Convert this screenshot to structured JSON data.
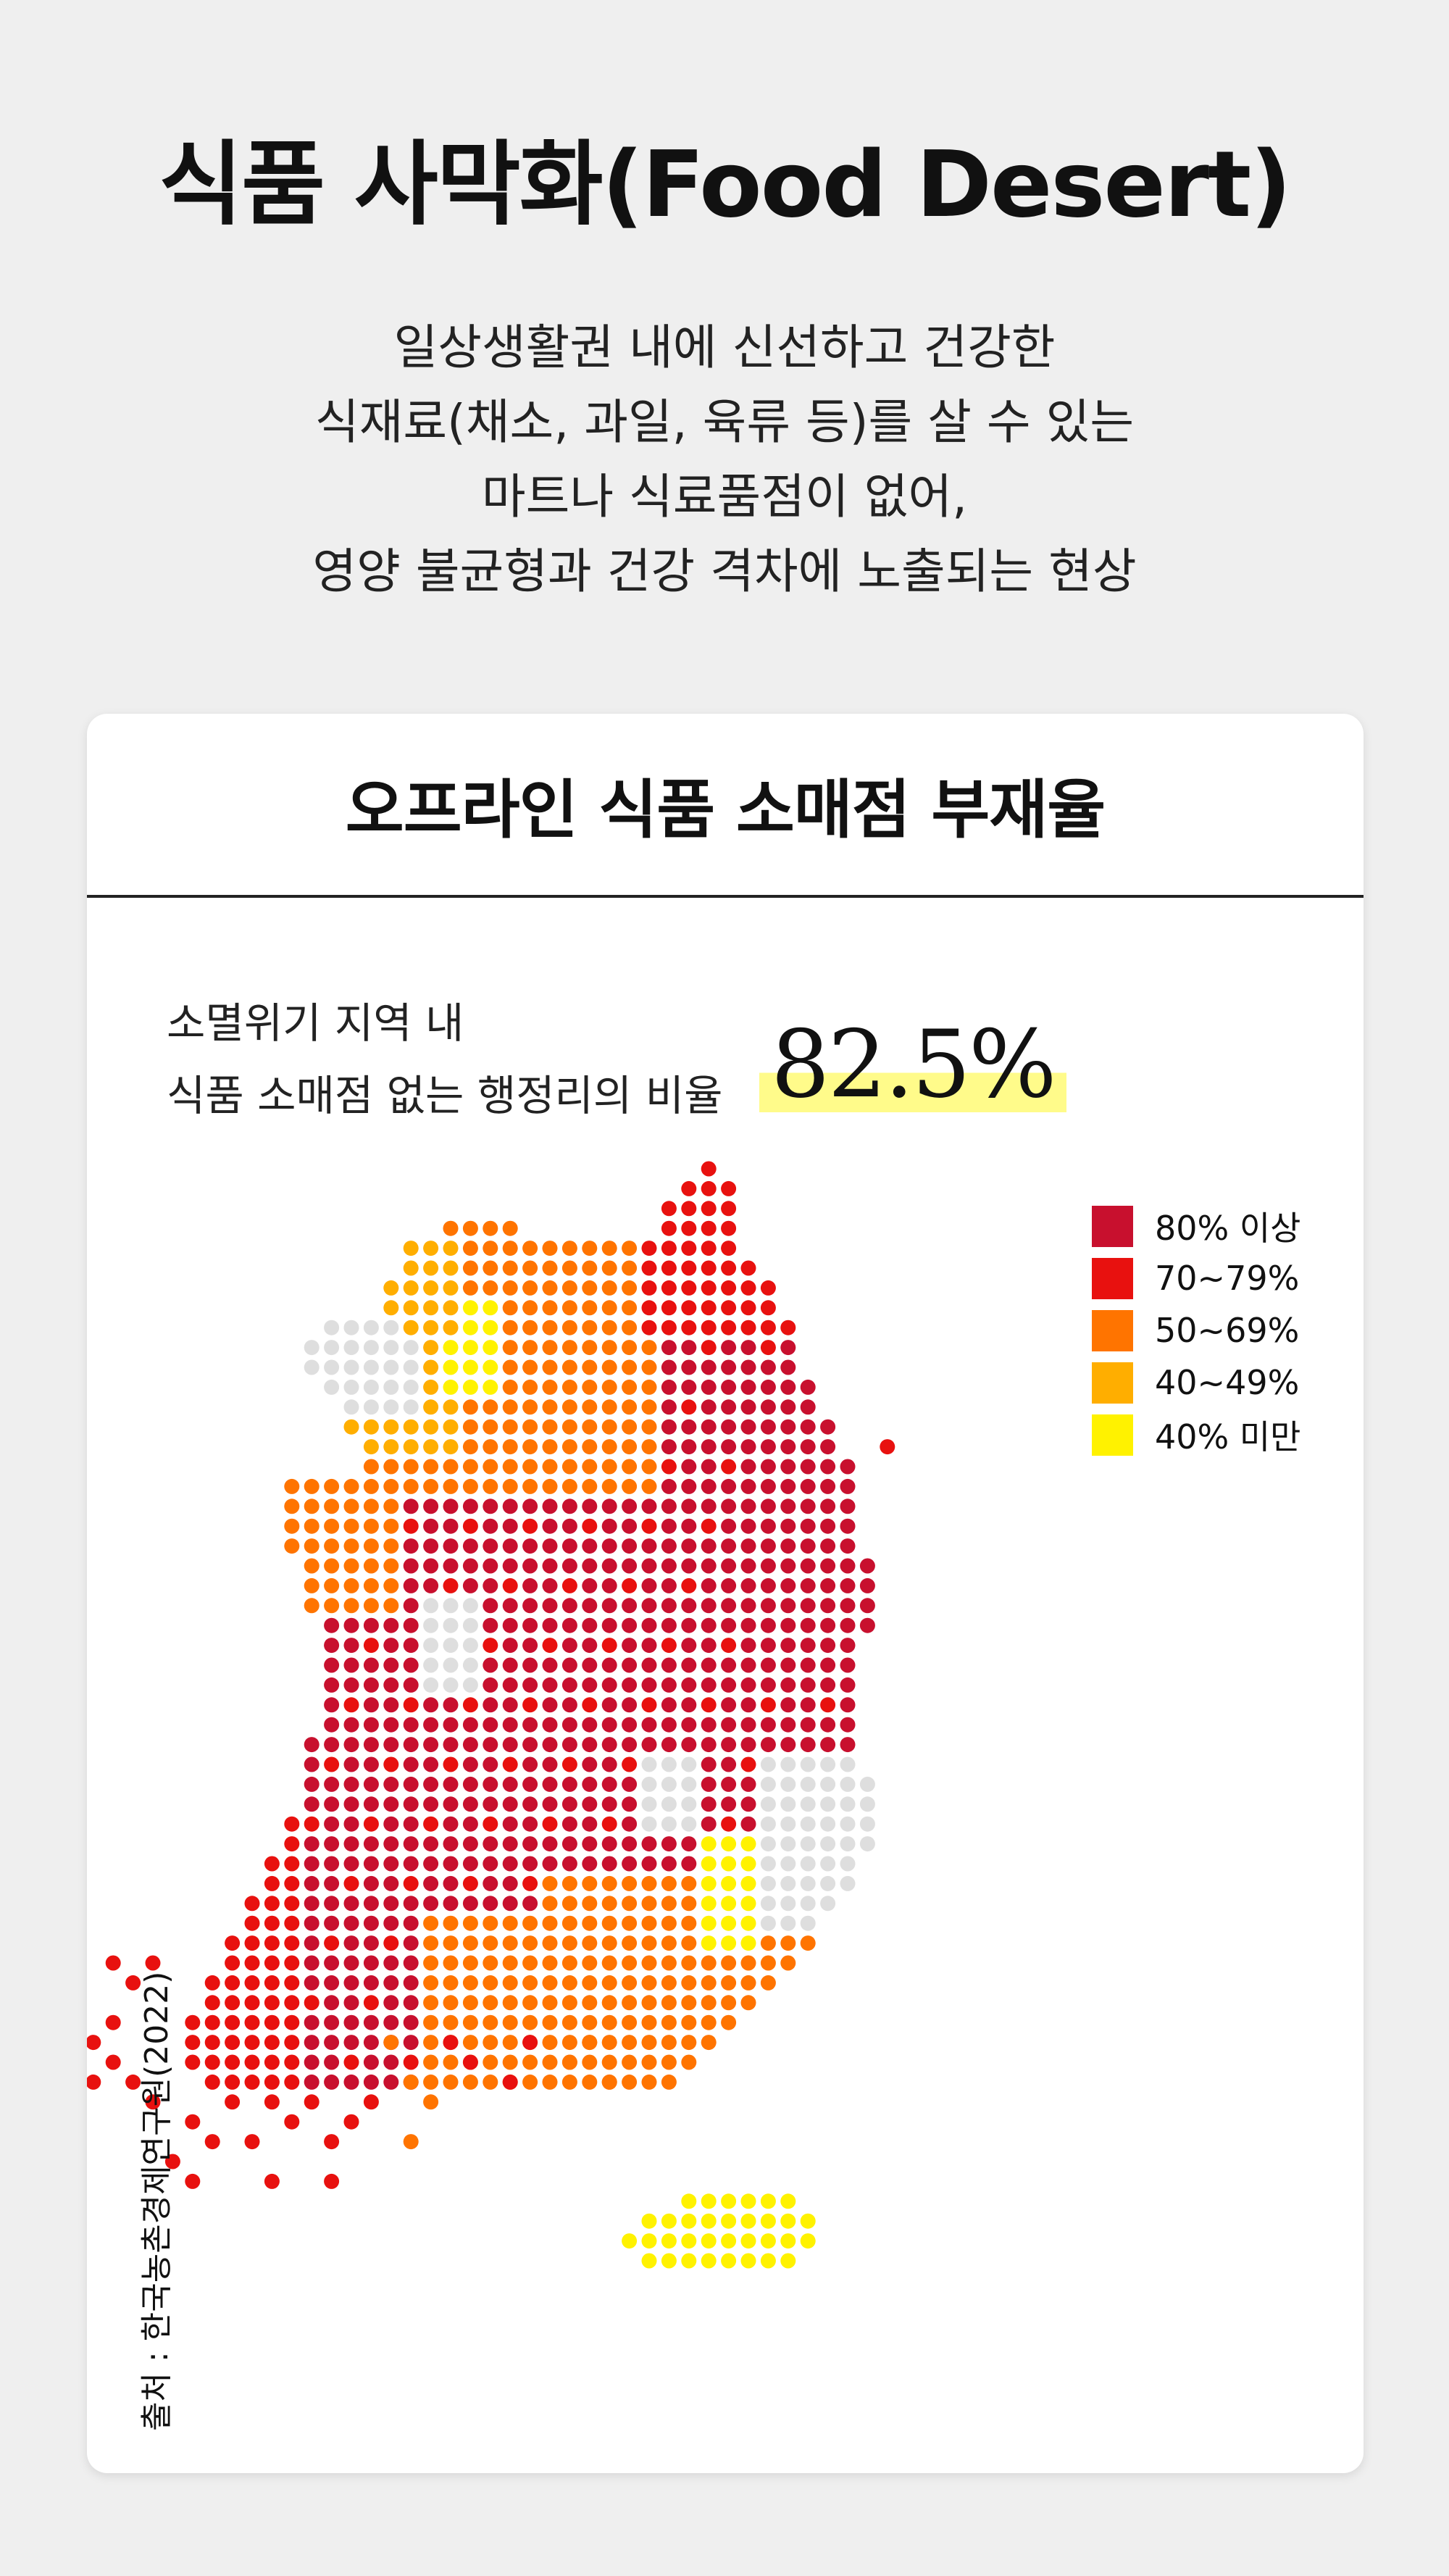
{
  "header": {
    "title": "식품 사막화(Food Desert)",
    "description": [
      "일상생활권 내에 신선하고 건강한",
      "식재료(채소, 과일, 육류 등)를 살 수 있는",
      "마트나 식료품점이 없어,",
      "영양 불균형과 건강 격차에 노출되는 현상"
    ]
  },
  "card": {
    "title": "오프라인 식품 소매점 부재율",
    "caption_line1": "소멸위기 지역 내",
    "caption_line2": "식품 소매점 없는 행정리의 비율",
    "highlight_value": "82.5%",
    "source": "출처 : 한국농촌경제연구원(2022)"
  },
  "legend": [
    {
      "label": "80% 이상",
      "color": "#c8102e"
    },
    {
      "label": "70~79%",
      "color": "#e8110f"
    },
    {
      "label": "50~69%",
      "color": "#ff7400"
    },
    {
      "label": "40~49%",
      "color": "#ffae00"
    },
    {
      "label": "40% 미만",
      "color": "#fff200"
    }
  ],
  "colors": {
    "no_data": "#dedede",
    "highlight": "#fffb8a",
    "background": "#efefef"
  }
}
